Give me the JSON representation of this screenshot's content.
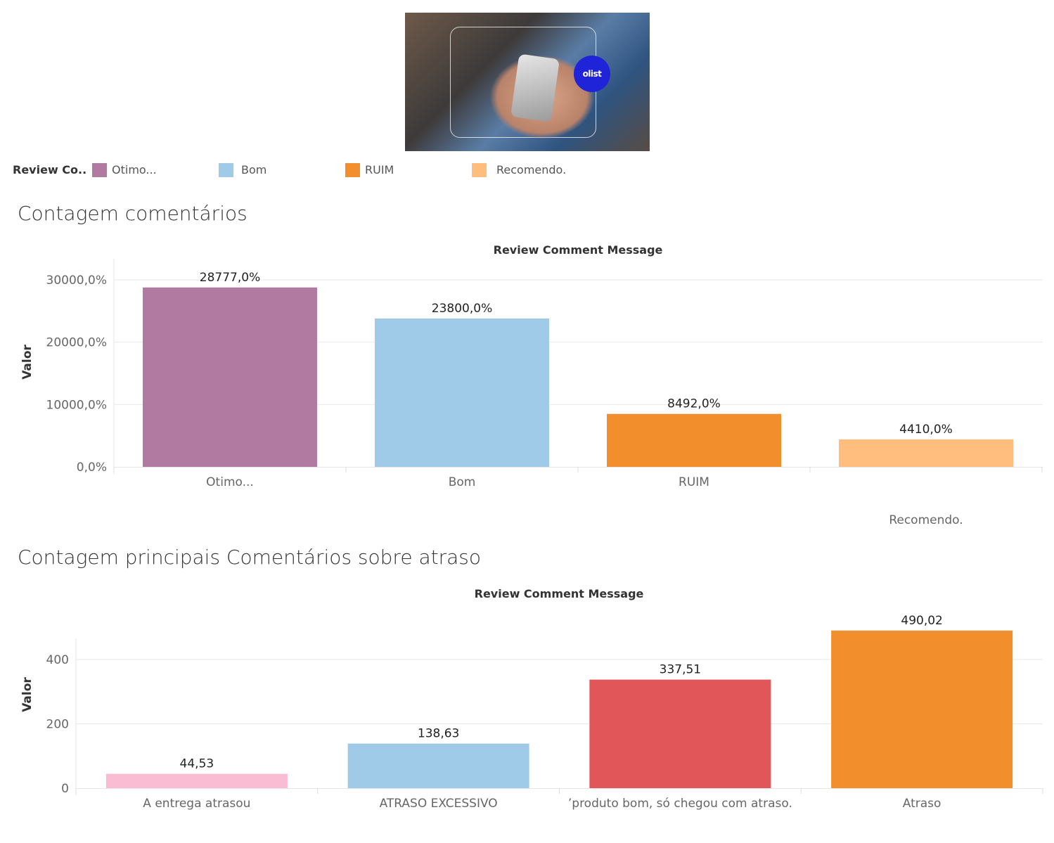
{
  "hero": {
    "logo_text": "olist"
  },
  "legend": {
    "title": "Review Co..",
    "items": [
      {
        "label": "Otimo...",
        "color": "#b07aa1"
      },
      {
        "label": "Bom",
        "color": "#a0cbe8"
      },
      {
        "label": "RUIM",
        "color": "#f28e2b"
      },
      {
        "label": "Recomendo.",
        "color": "#ffbe7d"
      }
    ]
  },
  "sections": {
    "contagem_title": "Contagem comentários",
    "atraso_title": "Contagem principais Comentários sobre atraso"
  },
  "chart_data": [
    {
      "type": "bar",
      "title": "Review Comment Message",
      "ylabel": "Valor",
      "categories": [
        "Otimo...",
        "Bom",
        "RUIM",
        "Recomendo."
      ],
      "values": [
        28777,
        23800,
        8492,
        4410
      ],
      "value_labels": [
        "28777,0%",
        "23800,0%",
        "8492,0%",
        "4410,0%"
      ],
      "colors": [
        "#b07aa1",
        "#a0cbe8",
        "#f28e2b",
        "#ffbe7d"
      ],
      "yticks": [
        0,
        10000,
        20000,
        30000
      ],
      "ytick_labels": [
        "0,0%",
        "10000,0%",
        "20000,0%",
        "30000,0%"
      ],
      "ylim": [
        0,
        30000
      ],
      "grid": true
    },
    {
      "type": "bar",
      "title": "Review Comment Message",
      "ylabel": "Valor",
      "categories": [
        "A entrega atrasou",
        "ATRASO EXCESSIVO",
        "’produto bom, só chegou com atraso.",
        "Atraso"
      ],
      "values": [
        44.53,
        138.63,
        337.51,
        490.02
      ],
      "value_labels": [
        "44,53",
        "138,63",
        "337,51",
        "490,02"
      ],
      "colors": [
        "#f9bcd2",
        "#a0cbe8",
        "#e15759",
        "#f28e2b"
      ],
      "yticks": [
        0,
        200,
        400
      ],
      "ytick_labels": [
        "0",
        "200",
        "400"
      ],
      "ylim": [
        0,
        400
      ],
      "grid": true
    }
  ]
}
